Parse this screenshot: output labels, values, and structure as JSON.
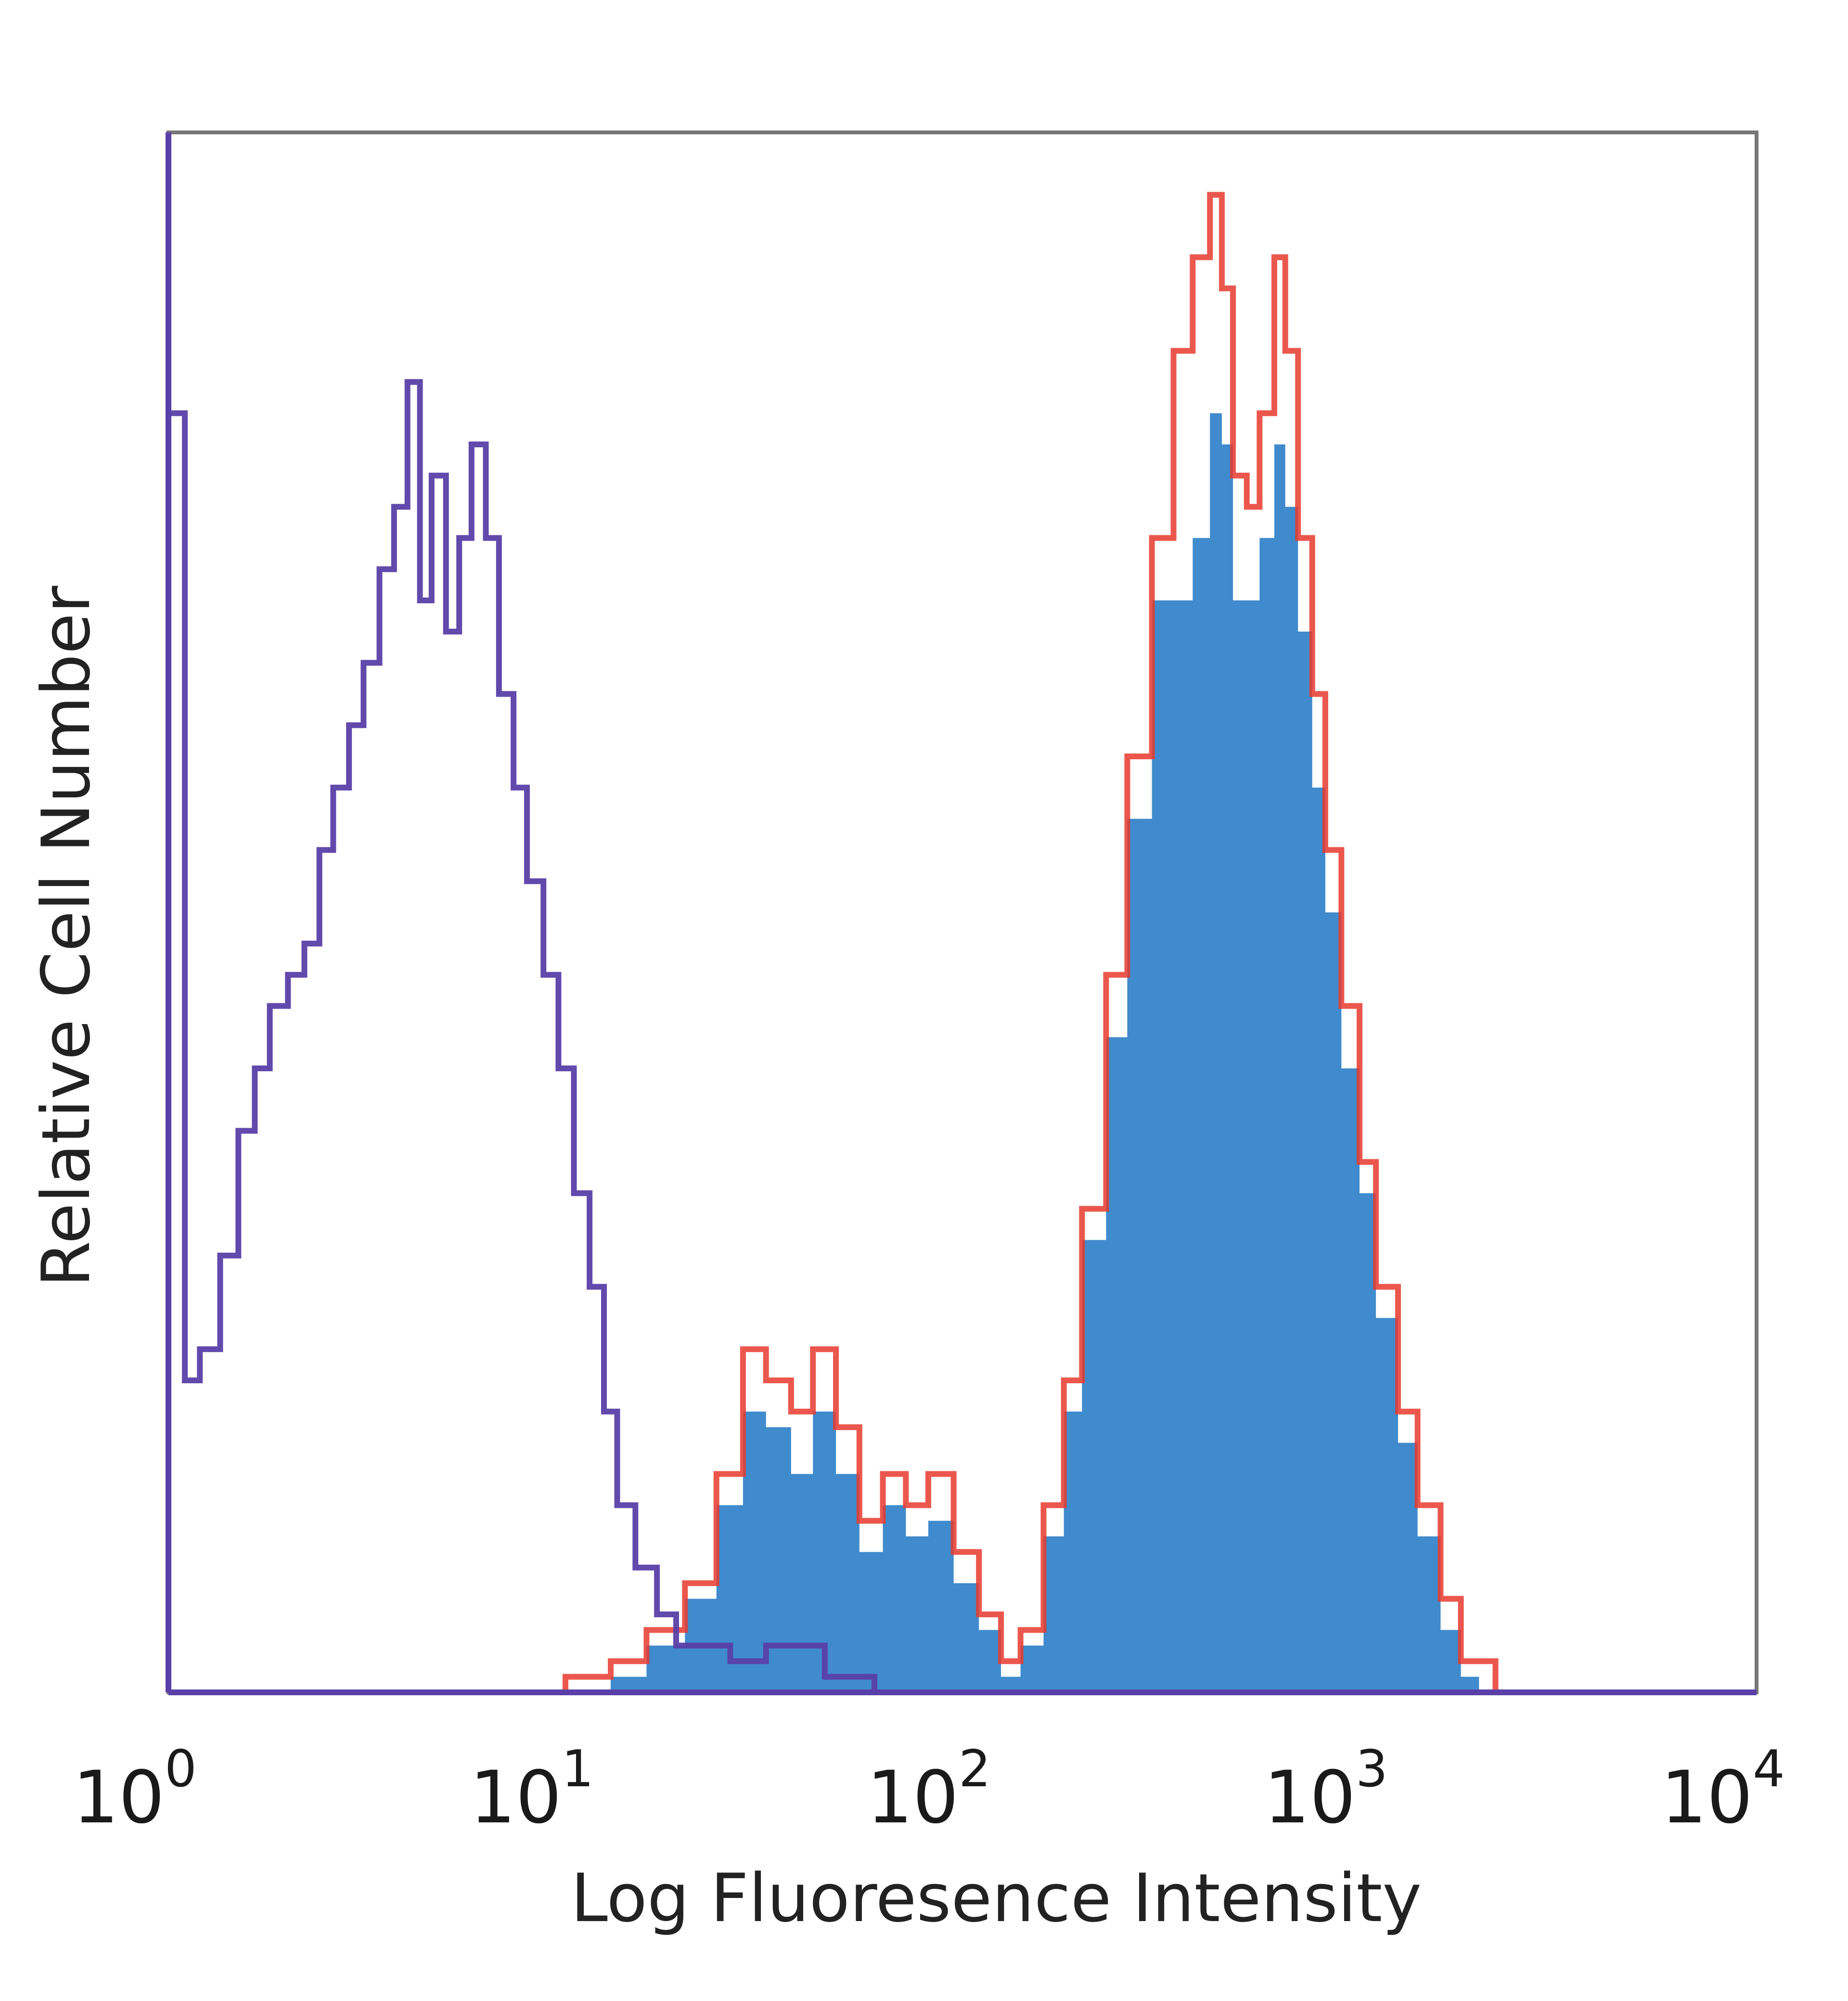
{
  "chart_data": {
    "type": "area",
    "x_scale": "log10",
    "xlim": [
      1,
      10000
    ],
    "ylim": [
      0,
      100
    ],
    "xlabel": "Log Fluoresence Intensity",
    "ylabel": "Relative Cell Number",
    "x_ticks": [
      {
        "base": "10",
        "exp": "0",
        "value": 1
      },
      {
        "base": "10",
        "exp": "1",
        "value": 10
      },
      {
        "base": "10",
        "exp": "2",
        "value": 100
      },
      {
        "base": "10",
        "exp": "3",
        "value": 1000
      },
      {
        "base": "10",
        "exp": "4",
        "value": 10000
      }
    ],
    "grid": false,
    "legend": "none",
    "series": [
      {
        "style": "filled",
        "color": "#3f8bcd",
        "x": [
          1.0,
          10.0,
          13.0,
          16.0,
          20.0,
          24.0,
          28.0,
          32.0,
          37.0,
          42.0,
          48.0,
          55.0,
          63.0,
          72.0,
          82.0,
          95.0,
          110.0,
          125.0,
          140.0,
          160.0,
          180.0,
          200.0,
          230.0,
          260.0,
          300.0,
          340.0,
          380.0,
          420.0,
          450.0,
          480.0,
          520.0,
          560.0,
          610.0,
          650.0,
          700.0,
          760.0,
          820.0,
          900.0,
          1000.0,
          1100.0,
          1250.0,
          1400.0,
          1600.0,
          1800.0,
          2000.0,
          2200.0,
          2600.0,
          4000.0,
          10000.0
        ],
        "values": [
          0,
          0,
          1,
          3,
          6,
          12,
          18,
          17,
          14,
          18,
          14,
          9,
          12,
          10,
          11,
          7,
          4,
          1,
          3,
          10,
          18,
          29,
          42,
          56,
          70,
          70,
          74,
          82,
          80,
          70,
          70,
          74,
          80,
          76,
          68,
          58,
          50,
          40,
          32,
          24,
          16,
          10,
          4,
          1,
          0,
          0,
          0,
          0,
          0
        ]
      },
      {
        "style": "line",
        "color": "#e83a2e",
        "x": [
          1.0,
          10.0,
          13.0,
          16.0,
          20.0,
          24.0,
          28.0,
          32.0,
          37.0,
          42.0,
          48.0,
          55.0,
          63.0,
          72.0,
          82.0,
          95.0,
          110.0,
          125.0,
          140.0,
          160.0,
          180.0,
          200.0,
          230.0,
          260.0,
          300.0,
          340.0,
          380.0,
          420.0,
          450.0,
          480.0,
          520.0,
          560.0,
          610.0,
          650.0,
          700.0,
          760.0,
          820.0,
          900.0,
          1000.0,
          1100.0,
          1250.0,
          1400.0,
          1600.0,
          1800.0,
          2000.0,
          2200.0,
          2600.0,
          4000.0,
          10000.0
        ],
        "values": [
          0,
          1,
          2,
          4,
          7,
          14,
          22,
          20,
          18,
          22,
          17,
          11,
          14,
          12,
          14,
          9,
          5,
          2,
          4,
          12,
          20,
          31,
          46,
          60,
          74,
          86,
          92,
          96,
          90,
          78,
          76,
          82,
          92,
          86,
          74,
          64,
          54,
          44,
          34,
          26,
          18,
          12,
          6,
          2,
          2,
          0,
          0,
          0,
          0
        ]
      },
      {
        "style": "line",
        "color": "#5a3fa8",
        "x": [
          1.0,
          1.1,
          1.2,
          1.35,
          1.5,
          1.65,
          1.8,
          2.0,
          2.2,
          2.4,
          2.6,
          2.85,
          3.1,
          3.4,
          3.7,
          4.0,
          4.3,
          4.6,
          5.0,
          5.4,
          5.8,
          6.3,
          6.8,
          7.4,
          8.0,
          8.8,
          9.6,
          10.5,
          11.5,
          12.5,
          13.5,
          15.0,
          17.0,
          19.0,
          22.0,
          26.0,
          32.0,
          45.0,
          60.0,
          100.0,
          10000.0
        ],
        "values": [
          82,
          20,
          22,
          28,
          36,
          40,
          44,
          46,
          48,
          54,
          58,
          62,
          66,
          72,
          76,
          84,
          70,
          78,
          68,
          74,
          80,
          74,
          64,
          58,
          52,
          46,
          40,
          32,
          26,
          18,
          12,
          8,
          5,
          3,
          3,
          2,
          3,
          1,
          0,
          0,
          0
        ]
      }
    ]
  }
}
